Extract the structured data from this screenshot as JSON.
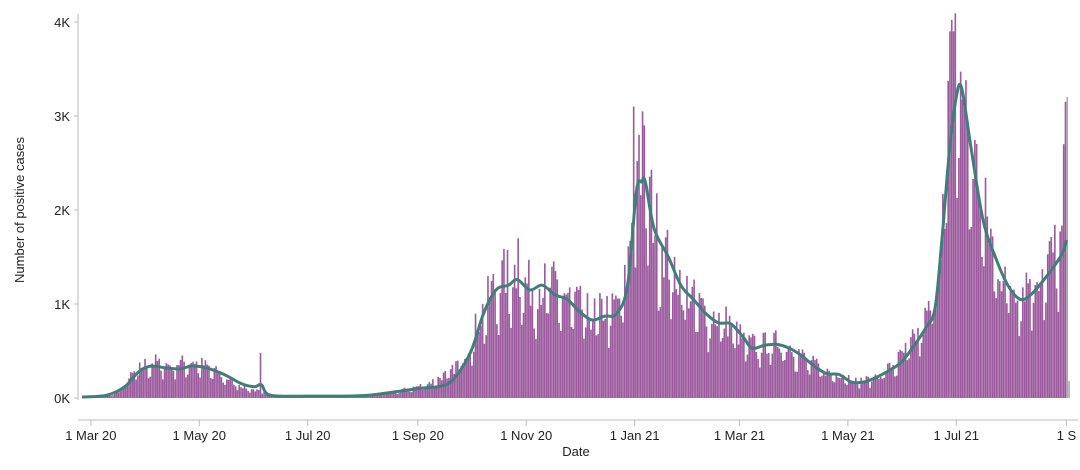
{
  "chart_data": {
    "type": "bar",
    "xlabel": "Date",
    "ylabel": "Number of positive cases",
    "ylim": [
      0,
      4000
    ],
    "y_ticks": [
      {
        "value": 0,
        "label": "0K"
      },
      {
        "value": 1000,
        "label": "1K"
      },
      {
        "value": 2000,
        "label": "2K"
      },
      {
        "value": 3000,
        "label": "3K"
      },
      {
        "value": 4000,
        "label": "4K"
      }
    ],
    "x_range": [
      "2020-02-25",
      "2021-09-03"
    ],
    "x_ticks": [
      {
        "date": "2020-03-01",
        "label": "1 Mar 20"
      },
      {
        "date": "2020-05-01",
        "label": "1 May 20"
      },
      {
        "date": "2020-07-01",
        "label": "1 Jul 20"
      },
      {
        "date": "2020-09-01",
        "label": "1 Sep 20"
      },
      {
        "date": "2020-11-01",
        "label": "1 Nov 20"
      },
      {
        "date": "2021-01-01",
        "label": "1 Jan 21"
      },
      {
        "date": "2021-03-01",
        "label": "1 Mar 21"
      },
      {
        "date": "2021-05-01",
        "label": "1 May 21"
      },
      {
        "date": "2021-07-01",
        "label": "1 Jul 21"
      },
      {
        "date": "2021-09-01",
        "label": "1 S"
      }
    ],
    "daily_cases_keypoints": [
      [
        "2020-02-28",
        5
      ],
      [
        "2020-03-10",
        20
      ],
      [
        "2020-03-17",
        80
      ],
      [
        "2020-03-23",
        220
      ],
      [
        "2020-03-30",
        340
      ],
      [
        "2020-04-06",
        370
      ],
      [
        "2020-04-13",
        340
      ],
      [
        "2020-04-20",
        360
      ],
      [
        "2020-04-27",
        380
      ],
      [
        "2020-05-04",
        330
      ],
      [
        "2020-05-11",
        260
      ],
      [
        "2020-05-18",
        180
      ],
      [
        "2020-05-25",
        120
      ],
      [
        "2020-06-01",
        80
      ],
      [
        "2020-06-08",
        40
      ],
      [
        "2020-06-15",
        30
      ],
      [
        "2020-07-01",
        20
      ],
      [
        "2020-07-15",
        15
      ],
      [
        "2020-08-01",
        25
      ],
      [
        "2020-08-15",
        50
      ],
      [
        "2020-09-01",
        120
      ],
      [
        "2020-09-10",
        180
      ],
      [
        "2020-09-20",
        280
      ],
      [
        "2020-09-28",
        500
      ],
      [
        "2020-10-05",
        800
      ],
      [
        "2020-10-12",
        1100
      ],
      [
        "2020-10-19",
        1250
      ],
      [
        "2020-10-26",
        1300
      ],
      [
        "2020-11-02",
        1150
      ],
      [
        "2020-11-09",
        1150
      ],
      [
        "2020-11-16",
        1150
      ],
      [
        "2020-11-23",
        1050
      ],
      [
        "2020-11-30",
        950
      ],
      [
        "2020-12-07",
        850
      ],
      [
        "2020-12-14",
        900
      ],
      [
        "2020-12-21",
        950
      ],
      [
        "2020-12-27",
        1200
      ],
      [
        "2021-01-01",
        2300
      ],
      [
        "2021-01-06",
        2350
      ],
      [
        "2021-01-12",
        1800
      ],
      [
        "2021-01-20",
        1400
      ],
      [
        "2021-01-27",
        1200
      ],
      [
        "2021-02-03",
        1000
      ],
      [
        "2021-02-10",
        880
      ],
      [
        "2021-02-17",
        820
      ],
      [
        "2021-02-24",
        760
      ],
      [
        "2021-03-03",
        580
      ],
      [
        "2021-03-10",
        540
      ],
      [
        "2021-03-17",
        560
      ],
      [
        "2021-03-24",
        580
      ],
      [
        "2021-03-31",
        520
      ],
      [
        "2021-04-07",
        400
      ],
      [
        "2021-04-14",
        320
      ],
      [
        "2021-04-21",
        250
      ],
      [
        "2021-04-28",
        250
      ],
      [
        "2021-05-05",
        180
      ],
      [
        "2021-05-12",
        190
      ],
      [
        "2021-05-19",
        250
      ],
      [
        "2021-05-26",
        340
      ],
      [
        "2021-06-02",
        480
      ],
      [
        "2021-06-09",
        650
      ],
      [
        "2021-06-16",
        900
      ],
      [
        "2021-06-20",
        1300
      ],
      [
        "2021-06-23",
        2000
      ],
      [
        "2021-06-28",
        3300
      ],
      [
        "2021-07-02",
        3550
      ],
      [
        "2021-07-05",
        3000
      ],
      [
        "2021-07-12",
        2300
      ],
      [
        "2021-07-19",
        1700
      ],
      [
        "2021-07-26",
        1300
      ],
      [
        "2021-08-02",
        1150
      ],
      [
        "2021-08-09",
        1200
      ],
      [
        "2021-08-16",
        1300
      ],
      [
        "2021-08-23",
        1450
      ],
      [
        "2021-08-28",
        1600
      ],
      [
        "2021-08-31",
        1550
      ]
    ],
    "daily_cases_spikes": [
      [
        "2020-06-04",
        480
      ],
      [
        "2020-10-27",
        1700
      ],
      [
        "2020-12-31",
        3100
      ],
      [
        "2021-01-03",
        2800
      ],
      [
        "2021-01-05",
        3050
      ],
      [
        "2021-06-27",
        3900
      ],
      [
        "2021-06-29",
        3900
      ],
      [
        "2021-08-30",
        2700
      ],
      [
        "2021-08-31",
        3150
      ]
    ],
    "rolling_average": [
      [
        "2020-02-25",
        10
      ],
      [
        "2020-03-10",
        30
      ],
      [
        "2020-03-20",
        120
      ],
      [
        "2020-03-28",
        280
      ],
      [
        "2020-04-04",
        340
      ],
      [
        "2020-04-12",
        320
      ],
      [
        "2020-04-20",
        310
      ],
      [
        "2020-04-27",
        340
      ],
      [
        "2020-05-05",
        320
      ],
      [
        "2020-05-15",
        250
      ],
      [
        "2020-05-25",
        150
      ],
      [
        "2020-06-01",
        120
      ],
      [
        "2020-06-05",
        140
      ],
      [
        "2020-06-10",
        30
      ],
      [
        "2020-07-01",
        20
      ],
      [
        "2020-08-01",
        25
      ],
      [
        "2020-08-15",
        55
      ],
      [
        "2020-09-01",
        100
      ],
      [
        "2020-09-15",
        130
      ],
      [
        "2020-09-22",
        220
      ],
      [
        "2020-10-01",
        500
      ],
      [
        "2020-10-08",
        900
      ],
      [
        "2020-10-15",
        1150
      ],
      [
        "2020-10-22",
        1200
      ],
      [
        "2020-10-27",
        1260
      ],
      [
        "2020-11-03",
        1150
      ],
      [
        "2020-11-10",
        1200
      ],
      [
        "2020-11-17",
        1100
      ],
      [
        "2020-11-24",
        1050
      ],
      [
        "2020-12-01",
        920
      ],
      [
        "2020-12-08",
        830
      ],
      [
        "2020-12-15",
        870
      ],
      [
        "2020-12-22",
        900
      ],
      [
        "2020-12-28",
        1200
      ],
      [
        "2021-01-02",
        2200
      ],
      [
        "2021-01-05",
        2300
      ],
      [
        "2021-01-07",
        2300
      ],
      [
        "2021-01-12",
        1800
      ],
      [
        "2021-01-20",
        1500
      ],
      [
        "2021-01-27",
        1200
      ],
      [
        "2021-02-03",
        1050
      ],
      [
        "2021-02-10",
        900
      ],
      [
        "2021-02-17",
        800
      ],
      [
        "2021-02-24",
        790
      ],
      [
        "2021-03-03",
        650
      ],
      [
        "2021-03-08",
        530
      ],
      [
        "2021-03-15",
        560
      ],
      [
        "2021-03-22",
        570
      ],
      [
        "2021-03-29",
        530
      ],
      [
        "2021-04-05",
        450
      ],
      [
        "2021-04-12",
        340
      ],
      [
        "2021-04-19",
        260
      ],
      [
        "2021-04-26",
        250
      ],
      [
        "2021-05-03",
        170
      ],
      [
        "2021-05-10",
        170
      ],
      [
        "2021-05-17",
        220
      ],
      [
        "2021-05-24",
        290
      ],
      [
        "2021-05-31",
        380
      ],
      [
        "2021-06-07",
        550
      ],
      [
        "2021-06-14",
        750
      ],
      [
        "2021-06-19",
        950
      ],
      [
        "2021-06-23",
        1700
      ],
      [
        "2021-06-27",
        2600
      ],
      [
        "2021-07-01",
        3200
      ],
      [
        "2021-07-04",
        3300
      ],
      [
        "2021-07-09",
        2700
      ],
      [
        "2021-07-16",
        1900
      ],
      [
        "2021-07-23",
        1500
      ],
      [
        "2021-07-30",
        1200
      ],
      [
        "2021-08-06",
        1050
      ],
      [
        "2021-08-12",
        1100
      ],
      [
        "2021-08-19",
        1250
      ],
      [
        "2021-08-25",
        1400
      ],
      [
        "2021-08-30",
        1550
      ],
      [
        "2021-09-01",
        1680
      ]
    ],
    "grey_bars": [
      [
        "2021-09-01",
        3200
      ],
      [
        "2021-09-02",
        180
      ]
    ],
    "grid": false,
    "colors": {
      "bars": "#9b5b9e",
      "bars_recent": "#aaaaaa",
      "rolling_average": "#3f7f7a",
      "axis": "#bbbbbb",
      "text": "#222222"
    }
  }
}
